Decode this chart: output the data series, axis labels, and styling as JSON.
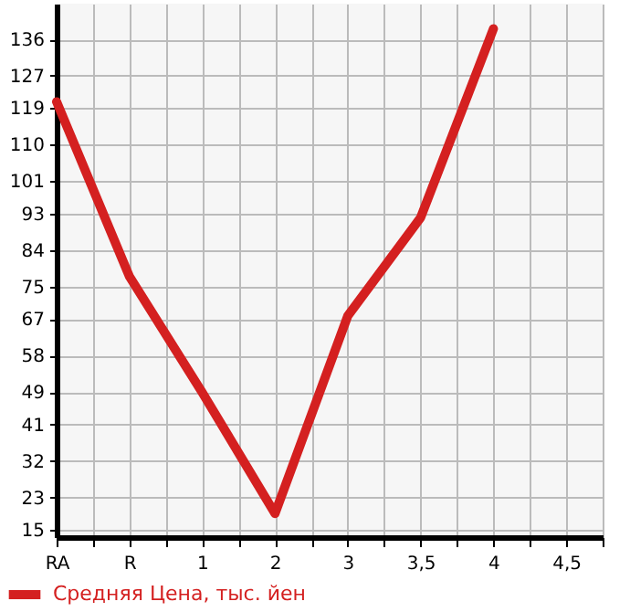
{
  "chart_data": {
    "type": "line",
    "categories": [
      "RA",
      "R",
      "1",
      "2",
      "3",
      "3,5",
      "4",
      "4,5"
    ],
    "series": [
      {
        "name": "Средняя Цена, тыс. йен",
        "color": "#d42020",
        "values": [
          120.6,
          77.5,
          48.9,
          19,
          67.8,
          92,
          138.6,
          null
        ]
      }
    ],
    "ylim": [
      13.2,
      144.8
    ],
    "yticks": [
      15,
      23,
      32,
      41,
      49,
      58,
      67,
      75,
      84,
      93,
      101,
      110,
      119,
      127,
      136
    ],
    "grid": true,
    "legend": "bottom",
    "line_style": "solid",
    "marker": "none"
  }
}
